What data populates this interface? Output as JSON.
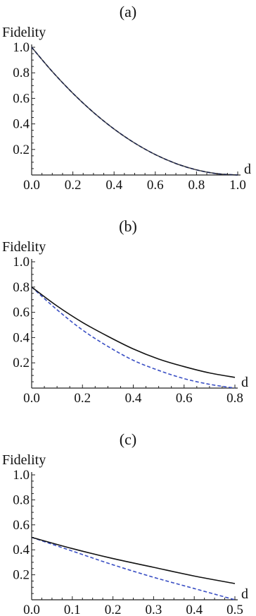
{
  "chart_data": [
    {
      "type": "line",
      "panel_label": "(a)",
      "ylabel": "Fidelity",
      "xlabel": "d",
      "xlim": [
        0,
        1.0
      ],
      "ylim": [
        0,
        1.0
      ],
      "xticks": [
        "0.0",
        "0.2",
        "0.4",
        "0.6",
        "0.8",
        "1.0"
      ],
      "yticks": [
        "0.2",
        "0.4",
        "0.6",
        "0.8",
        "1.0"
      ],
      "grid": false,
      "series": [
        {
          "style": "solid",
          "color": "#111111",
          "x": [
            0,
            0.1,
            0.2,
            0.3,
            0.4,
            0.5,
            0.6,
            0.7,
            0.8,
            0.9,
            1.0
          ],
          "y": [
            1.0,
            0.81,
            0.64,
            0.49,
            0.36,
            0.25,
            0.16,
            0.09,
            0.04,
            0.01,
            0.0
          ]
        },
        {
          "style": "dashed",
          "color": "#3a4fc4",
          "x": [
            0,
            0.1,
            0.2,
            0.3,
            0.4,
            0.5,
            0.6,
            0.7,
            0.8,
            0.9,
            1.0
          ],
          "y": [
            1.0,
            0.81,
            0.64,
            0.49,
            0.36,
            0.25,
            0.16,
            0.09,
            0.04,
            0.01,
            0.0
          ]
        }
      ]
    },
    {
      "type": "line",
      "panel_label": "(b)",
      "ylabel": "Fidelity",
      "xlabel": "d",
      "xlim": [
        0,
        0.8
      ],
      "ylim": [
        0,
        1.0
      ],
      "xticks": [
        "0.0",
        "0.2",
        "0.4",
        "0.6",
        "0.8"
      ],
      "yticks": [
        "0.2",
        "0.4",
        "0.6",
        "0.8",
        "1.0"
      ],
      "grid": false,
      "series": [
        {
          "style": "solid",
          "color": "#111111",
          "x": [
            0,
            0.1,
            0.2,
            0.3,
            0.4,
            0.5,
            0.6,
            0.7,
            0.8
          ],
          "y": [
            0.8,
            0.65,
            0.52,
            0.41,
            0.31,
            0.23,
            0.17,
            0.12,
            0.085
          ]
        },
        {
          "style": "dashed",
          "color": "#3a4fc4",
          "x": [
            0,
            0.1,
            0.2,
            0.3,
            0.4,
            0.5,
            0.6,
            0.7,
            0.8
          ],
          "y": [
            0.8,
            0.62,
            0.46,
            0.33,
            0.22,
            0.14,
            0.075,
            0.03,
            0.0
          ]
        }
      ]
    },
    {
      "type": "line",
      "panel_label": "(c)",
      "ylabel": "Fidelity",
      "xlabel": "d",
      "xlim": [
        0,
        0.5
      ],
      "ylim": [
        0,
        1.0
      ],
      "xticks": [
        "0.0",
        "0.1",
        "0.2",
        "0.3",
        "0.4",
        "0.5"
      ],
      "yticks": [
        "0.2",
        "0.4",
        "0.6",
        "0.8",
        "1.0"
      ],
      "grid": false,
      "series": [
        {
          "style": "solid",
          "color": "#111111",
          "x": [
            0,
            0.1,
            0.2,
            0.3,
            0.4,
            0.5
          ],
          "y": [
            0.5,
            0.41,
            0.33,
            0.26,
            0.19,
            0.13
          ]
        },
        {
          "style": "dashed",
          "color": "#3a4fc4",
          "x": [
            0,
            0.1,
            0.2,
            0.3,
            0.4,
            0.5
          ],
          "y": [
            0.5,
            0.39,
            0.28,
            0.18,
            0.09,
            0.0
          ]
        }
      ]
    }
  ]
}
